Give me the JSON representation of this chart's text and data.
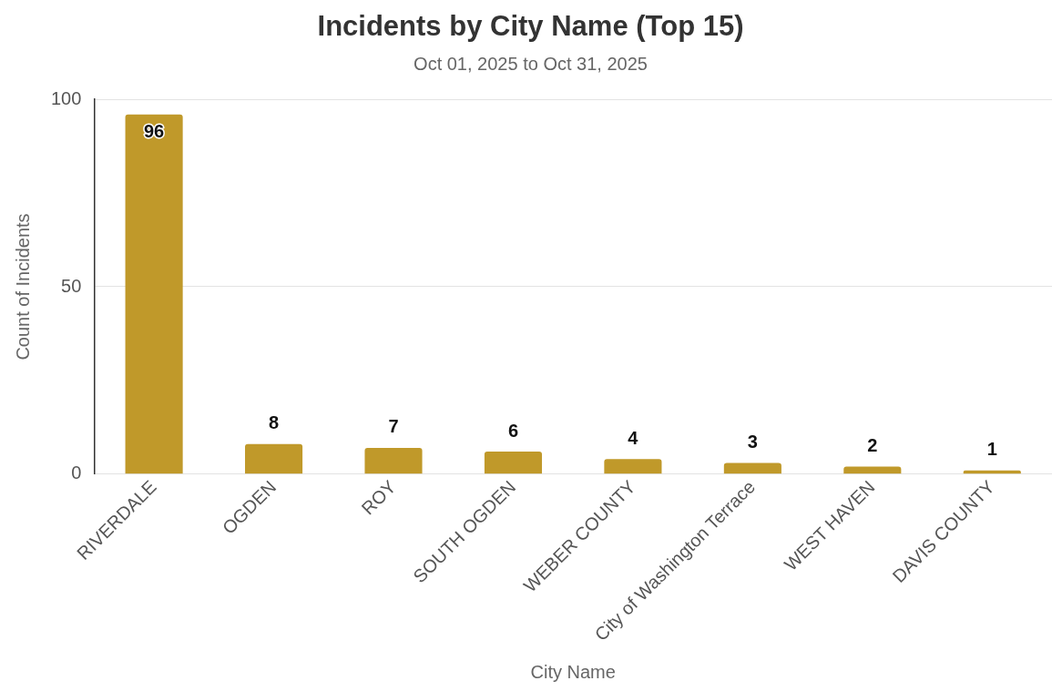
{
  "chart_data": {
    "type": "bar",
    "title": "Incidents by City Name (Top 15)",
    "subtitle": "Oct 01, 2025 to Oct 31, 2025",
    "xlabel": "City Name",
    "ylabel": "Count of Incidents",
    "categories": [
      "RIVERDALE",
      "OGDEN",
      "ROY",
      "SOUTH OGDEN",
      "WEBER COUNTY",
      "City of Washington Terrace",
      "WEST HAVEN",
      "DAVIS COUNTY"
    ],
    "values": [
      96,
      8,
      7,
      6,
      4,
      3,
      2,
      1
    ],
    "color": "#c0992a",
    "ylim": [
      0,
      100
    ],
    "yticks": [
      0,
      50,
      100
    ],
    "grid": "y",
    "data_labels": true
  }
}
